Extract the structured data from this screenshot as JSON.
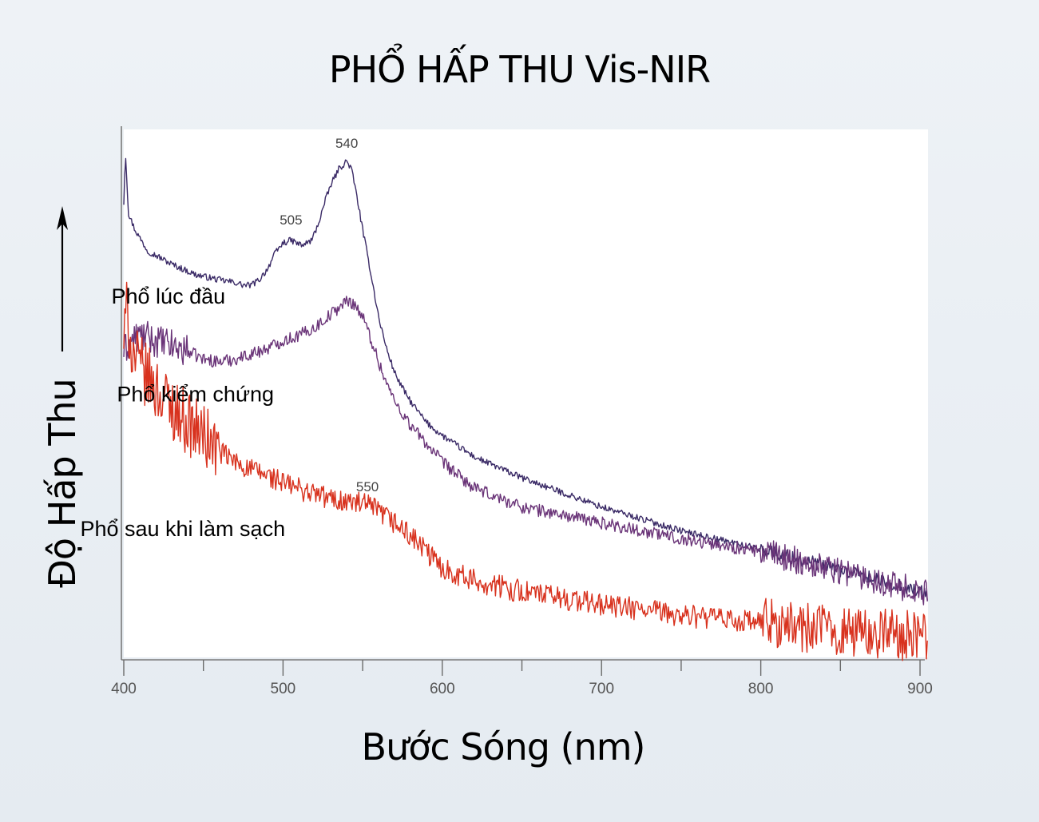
{
  "chart_data": {
    "type": "line",
    "title": "PHỔ HẤP THU Vis-NIR",
    "xlabel": "Bước Sóng (nm)",
    "ylabel": "Độ Hấp Thu",
    "xlim": [
      400,
      905
    ],
    "ylim": [
      0,
      1
    ],
    "xticks": [
      400,
      500,
      600,
      700,
      800,
      900
    ],
    "grid": false,
    "y_tick_labels": false,
    "series": [
      {
        "name": "Phổ lúc đầu",
        "color": "#3a2a66",
        "noise": 0.006,
        "x": [
          400,
          401,
          403,
          407,
          415,
          430,
          445,
          460,
          470,
          475,
          480,
          485,
          490,
          495,
          500,
          505,
          512,
          518,
          522,
          526,
          530,
          535,
          540,
          543,
          546,
          550,
          555,
          560,
          565,
          570,
          575,
          580,
          590,
          600,
          620,
          650,
          700,
          750,
          800,
          850,
          900,
          905
        ],
        "y": [
          0.86,
          0.96,
          0.84,
          0.81,
          0.77,
          0.745,
          0.725,
          0.715,
          0.71,
          0.705,
          0.705,
          0.715,
          0.735,
          0.765,
          0.785,
          0.79,
          0.78,
          0.79,
          0.82,
          0.86,
          0.895,
          0.925,
          0.94,
          0.925,
          0.88,
          0.81,
          0.73,
          0.645,
          0.585,
          0.54,
          0.51,
          0.485,
          0.445,
          0.42,
          0.38,
          0.34,
          0.285,
          0.24,
          0.205,
          0.165,
          0.125,
          0.12
        ]
      },
      {
        "name": "Phổ kiểm chứng",
        "color": "#6a3478",
        "noise": 0.012,
        "x": [
          400,
          405,
          410,
          420,
          430,
          440,
          450,
          460,
          470,
          480,
          490,
          500,
          510,
          520,
          530,
          540,
          545,
          550,
          555,
          560,
          565,
          570,
          580,
          590,
          600,
          620,
          650,
          700,
          750,
          800,
          850,
          900,
          905
        ],
        "y": [
          0.58,
          0.6,
          0.61,
          0.6,
          0.59,
          0.58,
          0.565,
          0.56,
          0.565,
          0.575,
          0.585,
          0.6,
          0.61,
          0.625,
          0.65,
          0.675,
          0.67,
          0.645,
          0.605,
          0.56,
          0.52,
          0.485,
          0.44,
          0.405,
          0.37,
          0.32,
          0.285,
          0.255,
          0.225,
          0.2,
          0.165,
          0.125,
          0.12
        ]
      },
      {
        "name": "Phổ sau khi làm sạch",
        "color": "#d8321e",
        "noise": 0.022,
        "x": [
          400,
          402,
          405,
          410,
          420,
          430,
          440,
          450,
          460,
          470,
          480,
          490,
          500,
          510,
          520,
          530,
          540,
          550,
          555,
          560,
          570,
          580,
          590,
          600,
          620,
          650,
          700,
          750,
          800,
          850,
          900,
          905
        ],
        "y": [
          0.6,
          0.66,
          0.58,
          0.55,
          0.51,
          0.475,
          0.445,
          0.42,
          0.39,
          0.37,
          0.355,
          0.345,
          0.33,
          0.32,
          0.31,
          0.3,
          0.295,
          0.29,
          0.285,
          0.275,
          0.255,
          0.23,
          0.2,
          0.17,
          0.145,
          0.125,
          0.1,
          0.08,
          0.065,
          0.05,
          0.04,
          0.038
        ]
      }
    ],
    "annotations": [
      {
        "text": "540",
        "x": 540,
        "y": 0.965
      },
      {
        "text": "505",
        "x": 505,
        "y": 0.82
      },
      {
        "text": "550",
        "x": 553,
        "y": 0.315
      }
    ],
    "curve_labels": [
      {
        "text": "Phổ lúc đầu",
        "x": 428,
        "y": 0.67
      },
      {
        "text": "Phổ kiểm chứng",
        "x": 445,
        "y": 0.485
      },
      {
        "text": "Phổ sau khi làm sạch",
        "x": 437,
        "y": 0.23
      }
    ]
  }
}
